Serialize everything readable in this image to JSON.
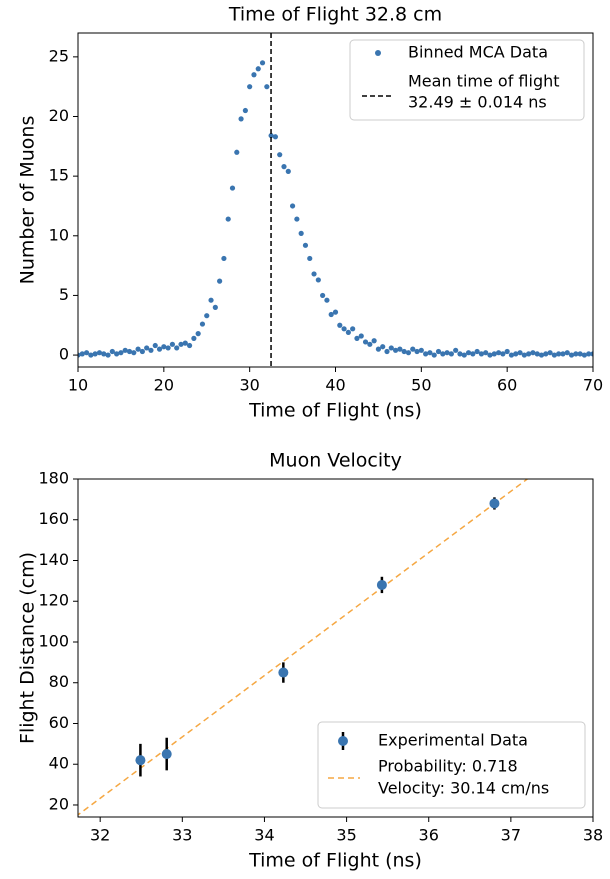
{
  "chart_data": [
    {
      "type": "scatter",
      "title": "Time of Flight 32.8 cm",
      "x_label": "Time of Flight (ns)",
      "y_label": "Number of Muons",
      "xlim": [
        10,
        70
      ],
      "ylim": [
        -1,
        27
      ],
      "xticks": [
        10,
        20,
        30,
        40,
        50,
        60,
        70
      ],
      "yticks": [
        0,
        5,
        10,
        15,
        20,
        25
      ],
      "legend": "upper right",
      "series": [
        {
          "name": "Binned MCA Data",
          "color": "#3a75b0",
          "x": [
            10,
            10.5,
            11,
            11.5,
            12,
            12.5,
            13,
            13.5,
            14,
            14.5,
            15,
            15.5,
            16,
            16.5,
            17,
            17.5,
            18,
            18.5,
            19,
            19.5,
            20,
            20.5,
            21,
            21.5,
            22,
            22.5,
            23,
            23.5,
            24,
            24.5,
            25,
            25.5,
            26,
            26.5,
            27,
            27.5,
            28,
            28.5,
            29,
            29.5,
            30,
            30.5,
            31,
            31.5,
            32,
            32.5,
            33,
            33.5,
            34,
            34.5,
            35,
            35.5,
            36,
            36.5,
            37,
            37.5,
            38,
            38.5,
            39,
            39.5,
            40,
            40.5,
            41,
            41.5,
            42,
            42.5,
            43,
            43.5,
            44,
            44.5,
            45,
            45.5,
            46,
            46.5,
            47,
            47.5,
            48,
            48.5,
            49,
            49.5,
            50,
            50.5,
            51,
            51.5,
            52,
            52.5,
            53,
            53.5,
            54,
            54.5,
            55,
            55.5,
            56,
            56.5,
            57,
            57.5,
            58,
            58.5,
            59,
            59.5,
            60,
            60.5,
            61,
            61.5,
            62,
            62.5,
            63,
            63.5,
            64,
            64.5,
            65,
            65.5,
            66,
            66.5,
            67,
            67.5,
            68,
            68.5,
            69,
            69.5,
            70
          ],
          "values": [
            0,
            0.1,
            0.2,
            0,
            0.1,
            0.2,
            0.1,
            0,
            0.3,
            0.1,
            0.2,
            0.4,
            0.3,
            0.2,
            0.5,
            0.3,
            0.6,
            0.4,
            0.8,
            0.5,
            0.7,
            0.6,
            0.9,
            0.6,
            0.9,
            1.0,
            0.8,
            1.4,
            1.8,
            2.6,
            3.3,
            4.6,
            4.0,
            6.2,
            8.1,
            11.4,
            14.0,
            17.0,
            19.8,
            20.5,
            22.5,
            23.5,
            24.0,
            24.5,
            22.5,
            18.4,
            18.3,
            16.8,
            15.8,
            15.4,
            12.5,
            11.4,
            10.2,
            9.2,
            8.1,
            6.8,
            6.3,
            5.0,
            4.6,
            3.4,
            3.6,
            2.5,
            2.2,
            1.9,
            2.2,
            1.4,
            1.6,
            1.1,
            0.9,
            1.2,
            0.5,
            0.7,
            0.3,
            0.6,
            0.4,
            0.5,
            0.3,
            0.2,
            0.5,
            0.3,
            0.4,
            0.1,
            0.2,
            0,
            0.3,
            0.1,
            0.2,
            0.1,
            0.4,
            0.1,
            0,
            0.2,
            0.1,
            0.3,
            0.1,
            0.2,
            0,
            0.1,
            0.2,
            0.1,
            0.3,
            0,
            0.1,
            0.2,
            0,
            0.1,
            0.2,
            0.1,
            0,
            0.1,
            0.2,
            0,
            0.1,
            0.1,
            0.2,
            0,
            0.1,
            0.1,
            0,
            0.1,
            0.1
          ]
        }
      ],
      "vline": {
        "name": [
          "Mean time of flight",
          "32.49 ± 0.014 ns"
        ],
        "x": 32.49,
        "color": "#000000"
      }
    },
    {
      "type": "errorbar",
      "title": "Muon Velocity",
      "x_label": "Time of Flight (ns)",
      "y_label": "Flight Distance (cm)",
      "xlim": [
        31.73,
        38
      ],
      "ylim": [
        14.1,
        180
      ],
      "xticks": [
        32,
        33,
        34,
        35,
        36,
        37,
        38
      ],
      "yticks": [
        20,
        40,
        60,
        80,
        100,
        120,
        140,
        160,
        180
      ],
      "legend": "lower right",
      "series": [
        {
          "name": "Experimental Data",
          "color": "#3a75b0",
          "x": [
            32.49,
            32.81,
            34.23,
            35.43,
            36.8
          ],
          "values": [
            42,
            45,
            85,
            128,
            168
          ],
          "errors": [
            8,
            8,
            5,
            4,
            3
          ]
        }
      ],
      "fit": {
        "name": [
          "Probability: 0.718",
          "Velocity: 30.14 cm/ns"
        ],
        "color": "#f5a742",
        "x": [
          31.7,
          37.3
        ],
        "values": [
          14.24,
          183.0
        ]
      }
    }
  ]
}
